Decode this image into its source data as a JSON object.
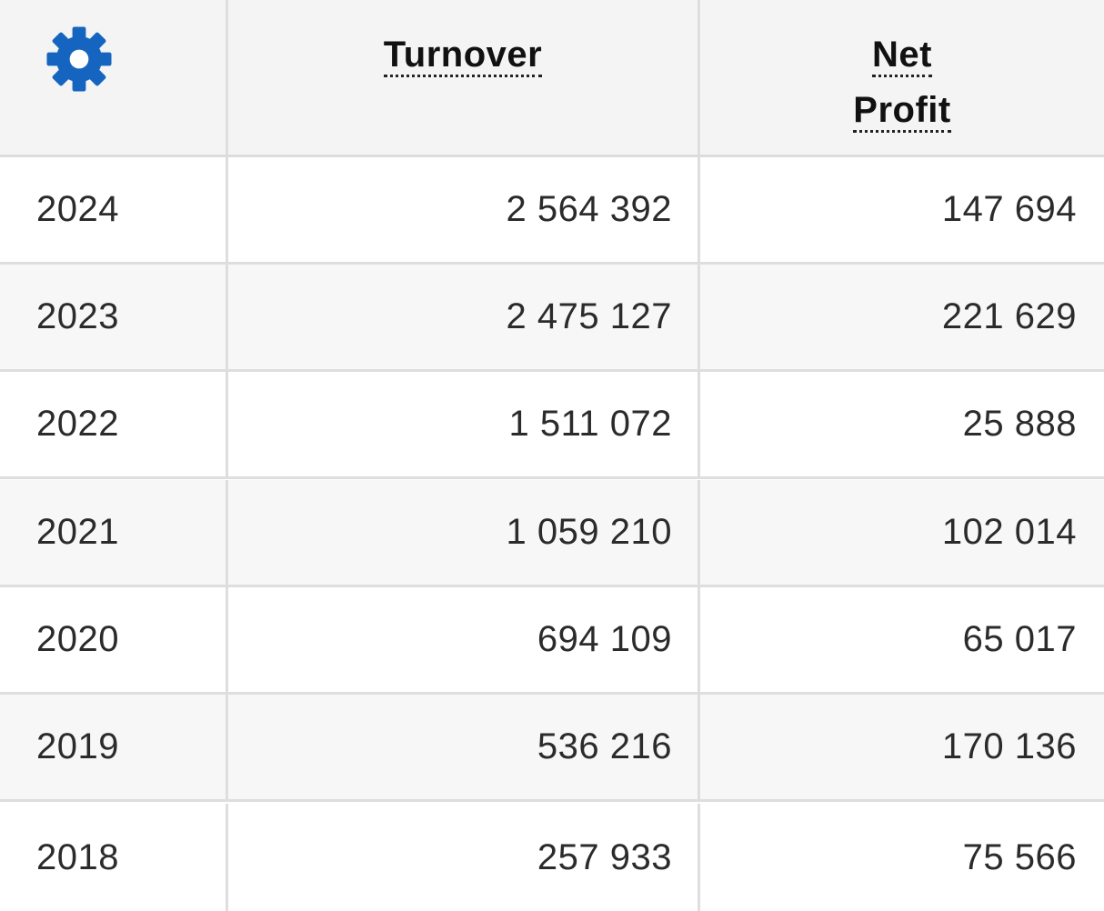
{
  "table": {
    "header": {
      "settings_icon": "gear-icon",
      "turnover": "Turnover",
      "net_profit_line1": "Net",
      "net_profit_line2": "Profit"
    },
    "rows": [
      {
        "year": "2024",
        "turnover": "2 564 392",
        "net_profit": "147 694"
      },
      {
        "year": "2023",
        "turnover": "2 475 127",
        "net_profit": "221 629"
      },
      {
        "year": "2022",
        "turnover": "1 511 072",
        "net_profit": "25 888"
      },
      {
        "year": "2021",
        "turnover": "1 059 210",
        "net_profit": "102 014"
      },
      {
        "year": "2020",
        "turnover": "694 109",
        "net_profit": "65 017"
      },
      {
        "year": "2019",
        "turnover": "536 216",
        "net_profit": "170 136"
      },
      {
        "year": "2018",
        "turnover": "257 933",
        "net_profit": "75 566"
      }
    ]
  },
  "colors": {
    "accent": "#1565c0",
    "header_bg": "#f4f4f4",
    "row_alt_bg": "#f7f7f7",
    "border": "#dedede"
  }
}
